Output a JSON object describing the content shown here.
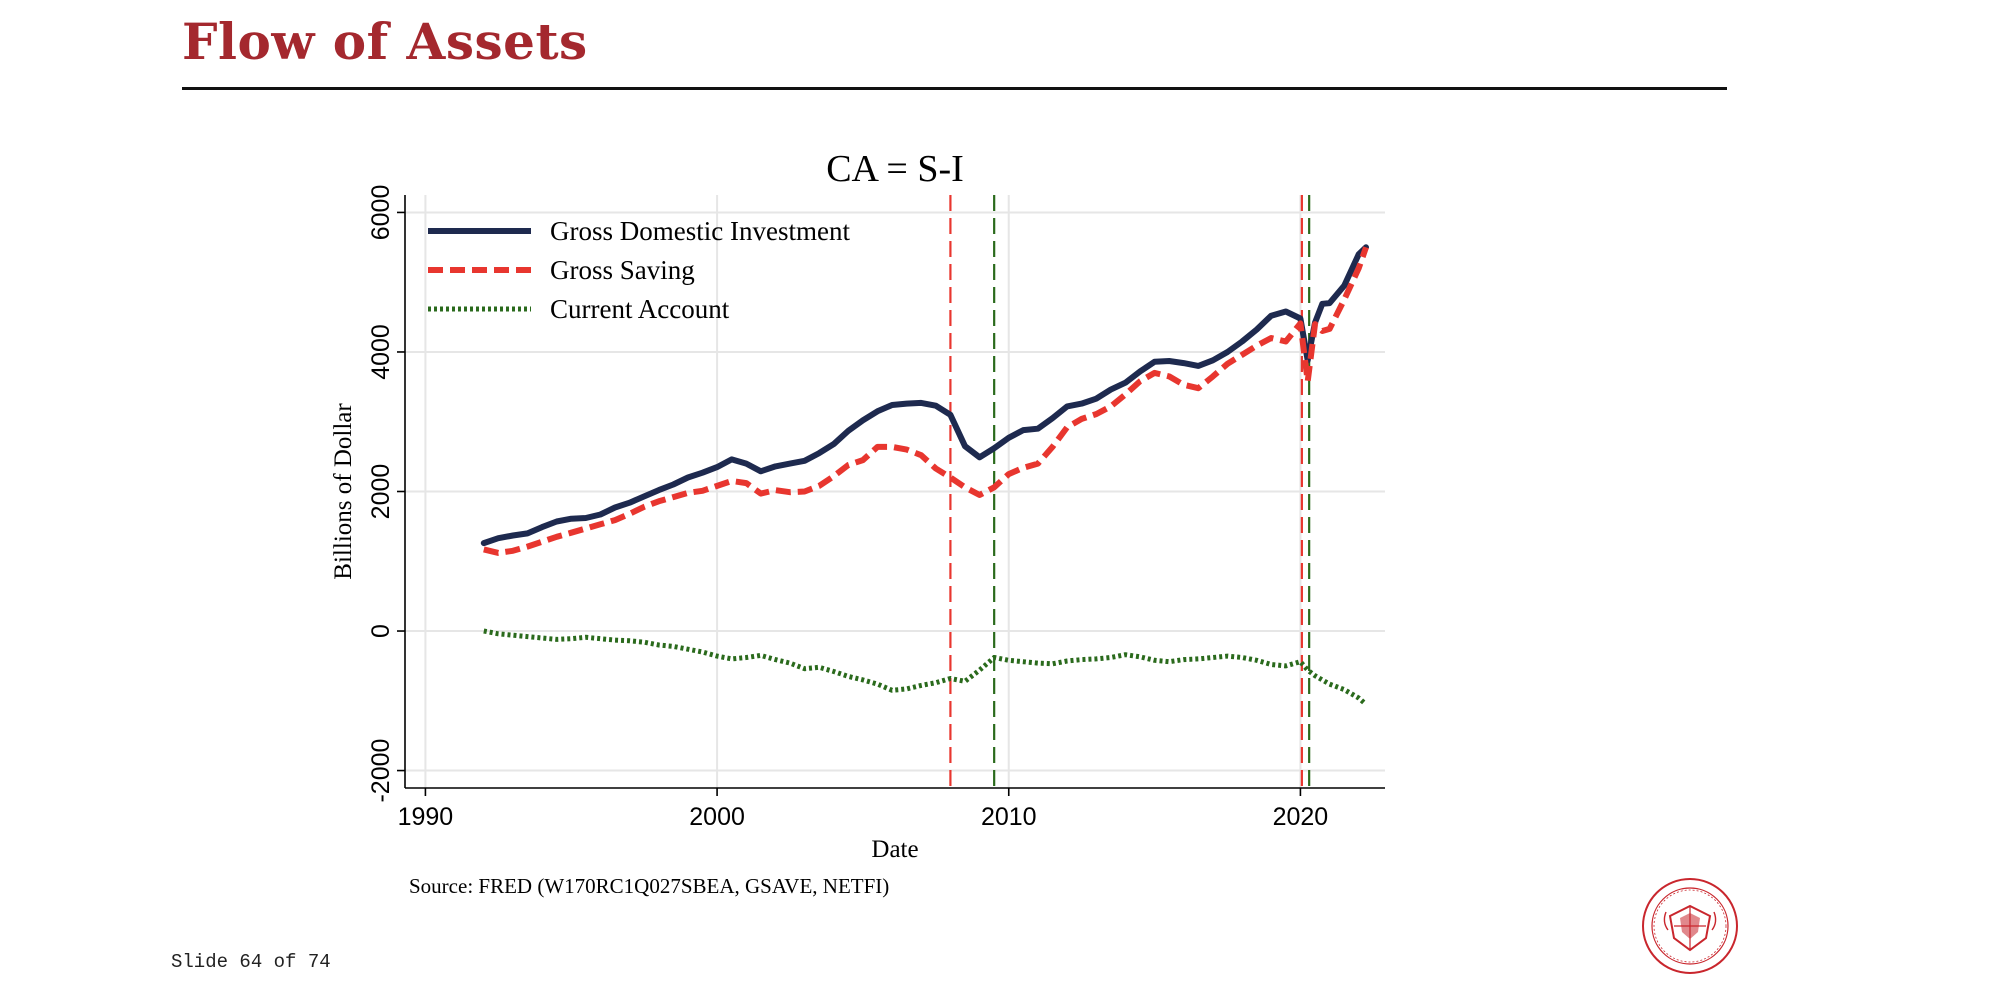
{
  "slide": {
    "title": "Flow of Assets",
    "source": "Source: FRED (W170RC1Q027SBEA, GSAVE, NETFI)",
    "slide_number": "Slide 64 of 74"
  },
  "colors": {
    "title": "#a4282e",
    "investment": "#1e2a4f",
    "saving": "#e8362f",
    "current_account": "#2a6a1c",
    "gridline": "#e6e6e6",
    "seal": "#c9262d"
  },
  "chart_data": {
    "type": "line",
    "title": "CA = S-I",
    "xlabel": "Date",
    "ylabel": "Billions of Dollar",
    "xlim": [
      1989.3,
      2022.9
    ],
    "ylim": [
      -2250,
      6250
    ],
    "xticks": [
      1990,
      2000,
      2010,
      2020
    ],
    "yticks": [
      -2000,
      0,
      2000,
      4000,
      6000
    ],
    "grid": true,
    "legend_position": "top-left",
    "series": [
      {
        "name": "Gross Domestic Investment",
        "style": "solid",
        "x": [
          1992.0,
          1992.5,
          1993.0,
          1993.5,
          1994.0,
          1994.5,
          1995.0,
          1995.5,
          1996.0,
          1996.5,
          1997.0,
          1997.5,
          1998.0,
          1998.5,
          1999.0,
          1999.5,
          2000.0,
          2000.5,
          2001.0,
          2001.5,
          2002.0,
          2002.5,
          2003.0,
          2003.5,
          2004.0,
          2004.5,
          2005.0,
          2005.5,
          2006.0,
          2006.5,
          2007.0,
          2007.5,
          2008.0,
          2008.5,
          2009.0,
          2009.5,
          2010.0,
          2010.5,
          2011.0,
          2011.5,
          2012.0,
          2012.5,
          2013.0,
          2013.5,
          2014.0,
          2014.5,
          2015.0,
          2015.5,
          2016.0,
          2016.5,
          2017.0,
          2017.5,
          2018.0,
          2018.5,
          2019.0,
          2019.5,
          2020.0,
          2020.25,
          2020.5,
          2020.75,
          2021.0,
          2021.5,
          2022.0,
          2022.25
        ],
        "y": [
          1260,
          1330,
          1370,
          1400,
          1490,
          1570,
          1610,
          1620,
          1670,
          1770,
          1840,
          1930,
          2020,
          2100,
          2200,
          2270,
          2350,
          2460,
          2400,
          2290,
          2360,
          2400,
          2440,
          2550,
          2680,
          2870,
          3020,
          3150,
          3240,
          3260,
          3270,
          3230,
          3100,
          2650,
          2490,
          2620,
          2770,
          2880,
          2900,
          3050,
          3220,
          3260,
          3330,
          3460,
          3560,
          3720,
          3860,
          3870,
          3840,
          3800,
          3880,
          4000,
          4150,
          4320,
          4520,
          4580,
          4480,
          3880,
          4420,
          4690,
          4700,
          4950,
          5400,
          5500
        ]
      },
      {
        "name": "Gross Saving",
        "style": "dashed",
        "x": [
          1992.0,
          1992.5,
          1993.0,
          1993.5,
          1994.0,
          1994.5,
          1995.0,
          1995.5,
          1996.0,
          1996.5,
          1997.0,
          1997.5,
          1998.0,
          1998.5,
          1999.0,
          1999.5,
          2000.0,
          2000.5,
          2001.0,
          2001.5,
          2002.0,
          2002.5,
          2003.0,
          2003.5,
          2004.0,
          2004.5,
          2005.0,
          2005.5,
          2006.0,
          2006.5,
          2007.0,
          2007.5,
          2008.0,
          2008.5,
          2009.0,
          2009.5,
          2010.0,
          2010.5,
          2011.0,
          2011.5,
          2012.0,
          2012.5,
          2013.0,
          2013.5,
          2014.0,
          2014.5,
          2015.0,
          2015.5,
          2016.0,
          2016.5,
          2017.0,
          2017.5,
          2018.0,
          2018.5,
          2019.0,
          2019.5,
          2020.0,
          2020.25,
          2020.5,
          2020.75,
          2021.0,
          2021.5,
          2022.0,
          2022.25
        ],
        "y": [
          1170,
          1120,
          1150,
          1210,
          1280,
          1350,
          1410,
          1470,
          1530,
          1590,
          1680,
          1780,
          1860,
          1920,
          1980,
          2010,
          2080,
          2150,
          2120,
          1970,
          2020,
          1990,
          2000,
          2080,
          2220,
          2380,
          2450,
          2640,
          2640,
          2600,
          2520,
          2330,
          2200,
          2060,
          1950,
          2060,
          2250,
          2340,
          2400,
          2640,
          2920,
          3040,
          3110,
          3220,
          3390,
          3580,
          3700,
          3650,
          3530,
          3480,
          3650,
          3830,
          3960,
          4090,
          4200,
          4150,
          4410,
          3580,
          4400,
          4300,
          4330,
          4750,
          5200,
          5500
        ]
      },
      {
        "name": "Current Account",
        "style": "dotted",
        "x": [
          1992.0,
          1992.5,
          1993.0,
          1993.5,
          1994.0,
          1994.5,
          1995.0,
          1995.5,
          1996.0,
          1996.5,
          1997.0,
          1997.5,
          1998.0,
          1998.5,
          1999.0,
          1999.5,
          2000.0,
          2000.5,
          2001.0,
          2001.5,
          2002.0,
          2002.5,
          2003.0,
          2003.5,
          2004.0,
          2004.5,
          2005.0,
          2005.5,
          2006.0,
          2006.5,
          2007.0,
          2007.5,
          2008.0,
          2008.5,
          2009.0,
          2009.5,
          2010.0,
          2010.5,
          2011.0,
          2011.5,
          2012.0,
          2012.5,
          2013.0,
          2013.5,
          2014.0,
          2014.5,
          2015.0,
          2015.5,
          2016.0,
          2016.5,
          2017.0,
          2017.5,
          2018.0,
          2018.5,
          2019.0,
          2019.5,
          2020.0,
          2020.25,
          2020.5,
          2020.75,
          2021.0,
          2021.5,
          2022.0,
          2022.25
        ],
        "y": [
          0,
          -40,
          -60,
          -80,
          -100,
          -120,
          -110,
          -90,
          -110,
          -130,
          -140,
          -160,
          -200,
          -220,
          -260,
          -300,
          -360,
          -400,
          -380,
          -350,
          -410,
          -460,
          -540,
          -520,
          -580,
          -650,
          -700,
          -760,
          -850,
          -830,
          -780,
          -740,
          -680,
          -720,
          -560,
          -380,
          -420,
          -440,
          -460,
          -470,
          -430,
          -410,
          -400,
          -380,
          -340,
          -370,
          -420,
          -440,
          -410,
          -400,
          -380,
          -360,
          -380,
          -420,
          -480,
          -500,
          -440,
          -560,
          -640,
          -700,
          -760,
          -840,
          -960,
          -1050
        ]
      }
    ],
    "vlines": [
      {
        "x": 2008.0,
        "color": "red",
        "style": "dashed"
      },
      {
        "x": 2009.5,
        "color": "green",
        "style": "dashed"
      },
      {
        "x": 2020.05,
        "color": "red",
        "style": "dashed"
      },
      {
        "x": 2020.3,
        "color": "green",
        "style": "dashed"
      }
    ]
  }
}
